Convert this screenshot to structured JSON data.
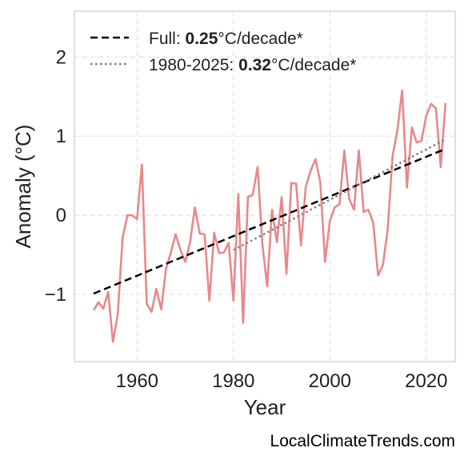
{
  "chart_data": {
    "type": "line",
    "xlabel": "Year",
    "ylabel": "Anomaly (°C)",
    "xlim": [
      1947,
      2026
    ],
    "ylim": [
      -1.85,
      2.58
    ],
    "x_ticks": [
      1960,
      1980,
      2000,
      2020
    ],
    "y_ticks": [
      -1,
      0,
      1,
      2
    ],
    "y_tick_labels": [
      "−1",
      "0",
      "1",
      "2"
    ],
    "grid": true,
    "legend_position": "top-left",
    "colors": {
      "series": "#e8888a",
      "full_trend": "#000000",
      "recent_trend": "#808080"
    },
    "series": [
      {
        "x": [
          1951,
          1952,
          1953,
          1954,
          1955,
          1956,
          1957,
          1958,
          1959,
          1960,
          1961,
          1962,
          1963,
          1964,
          1965,
          1966,
          1967,
          1968,
          1969,
          1970,
          1971,
          1972,
          1973,
          1974,
          1975,
          1976,
          1977,
          1978,
          1979,
          1980,
          1981,
          1982,
          1983,
          1984,
          1985,
          1986,
          1987,
          1988,
          1989,
          1990,
          1991,
          1992,
          1993,
          1994,
          1995,
          1996,
          1997,
          1998,
          1999,
          2000,
          2001,
          2002,
          2003,
          2004,
          2005,
          2006,
          2007,
          2008,
          2009,
          2010,
          2011,
          2012,
          2013,
          2014,
          2015,
          2016,
          2017,
          2018,
          2019,
          2020,
          2021,
          2022,
          2023,
          2024
        ],
        "values": [
          -1.2,
          -1.1,
          -1.18,
          -0.97,
          -1.6,
          -1.25,
          -0.28,
          0.0,
          0.0,
          -0.05,
          0.64,
          -1.12,
          -1.22,
          -0.93,
          -1.19,
          -0.68,
          -0.47,
          -0.24,
          -0.44,
          -0.59,
          -0.34,
          0.1,
          -0.23,
          -0.24,
          -1.08,
          -0.22,
          -0.48,
          -0.47,
          -0.35,
          -1.08,
          0.27,
          -1.36,
          0.23,
          0.26,
          0.61,
          -0.37,
          -0.9,
          0.07,
          -0.34,
          0.23,
          -0.74,
          0.41,
          0.4,
          -0.38,
          0.36,
          0.56,
          0.71,
          0.42,
          -0.59,
          -0.07,
          0.1,
          0.14,
          0.82,
          0.21,
          0.07,
          0.82,
          0.04,
          0.07,
          -0.1,
          -0.76,
          -0.63,
          -0.18,
          0.75,
          1.07,
          1.58,
          0.35,
          1.11,
          0.92,
          0.94,
          1.26,
          1.41,
          1.35,
          0.61,
          1.42
        ]
      }
    ],
    "trends": [
      {
        "style": "dashed",
        "x": [
          1951,
          2024
        ],
        "values": [
          -0.99,
          0.84
        ]
      },
      {
        "style": "dotted",
        "x": [
          1980,
          2024
        ],
        "values": [
          -0.44,
          0.96
        ]
      }
    ],
    "legend": [
      {
        "pre": "Full: ",
        "bold": "0.25",
        "post": "°C/decade*"
      },
      {
        "pre": "1980-2025: ",
        "bold": "0.32",
        "post": "°C/decade*"
      }
    ]
  },
  "watermark": "LocalClimateTrends.com"
}
